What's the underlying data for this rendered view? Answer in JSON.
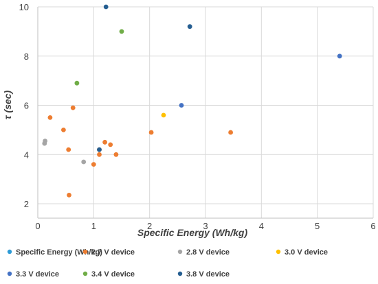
{
  "chart_data": {
    "type": "scatter",
    "title": "",
    "xlabel": "Specific Energy (Wh/kg)",
    "ylabel": "τ (sec)",
    "xlim": [
      0,
      6
    ],
    "ylim": [
      1.3,
      10
    ],
    "xticks": [
      "0",
      "1",
      "2",
      "3",
      "4",
      "5",
      "6"
    ],
    "yticks": [
      "2",
      "4",
      "6",
      "8",
      "10"
    ],
    "grid": true,
    "legend_position": "bottom",
    "series": [
      {
        "name": "Specific Energy (Wh/kg)",
        "color": "#2e9bd6",
        "points": []
      },
      {
        "name": "2.7 V device",
        "color": "#ed7d31",
        "points": [
          {
            "x": 0.22,
            "y": 5.5
          },
          {
            "x": 0.46,
            "y": 5.0
          },
          {
            "x": 0.55,
            "y": 4.2
          },
          {
            "x": 0.63,
            "y": 5.9
          },
          {
            "x": 0.56,
            "y": 2.35
          },
          {
            "x": 1.0,
            "y": 3.6
          },
          {
            "x": 1.1,
            "y": 4.0
          },
          {
            "x": 1.1,
            "y": 4.2
          },
          {
            "x": 1.2,
            "y": 4.5
          },
          {
            "x": 1.3,
            "y": 4.4
          },
          {
            "x": 1.4,
            "y": 4.0
          },
          {
            "x": 2.03,
            "y": 4.9
          },
          {
            "x": 3.45,
            "y": 4.9
          }
        ]
      },
      {
        "name": "2.8 V device",
        "color": "#a5a5a5",
        "points": [
          {
            "x": 0.12,
            "y": 4.45
          },
          {
            "x": 0.13,
            "y": 4.55
          },
          {
            "x": 0.82,
            "y": 3.7
          }
        ]
      },
      {
        "name": "3.0 V device",
        "color": "#ffc000",
        "points": [
          {
            "x": 2.25,
            "y": 5.6
          }
        ]
      },
      {
        "name": "3.3 V device",
        "color": "#4472c4",
        "points": [
          {
            "x": 2.57,
            "y": 6.0
          },
          {
            "x": 5.4,
            "y": 8.0
          }
        ]
      },
      {
        "name": "3.4 V device",
        "color": "#70ad47",
        "points": [
          {
            "x": 0.7,
            "y": 6.9
          },
          {
            "x": 1.5,
            "y": 9.0
          }
        ]
      },
      {
        "name": "3.8 V device",
        "color": "#255e91",
        "points": [
          {
            "x": 1.22,
            "y": 10.0
          },
          {
            "x": 2.72,
            "y": 9.2
          },
          {
            "x": 1.1,
            "y": 4.2
          }
        ]
      }
    ]
  }
}
